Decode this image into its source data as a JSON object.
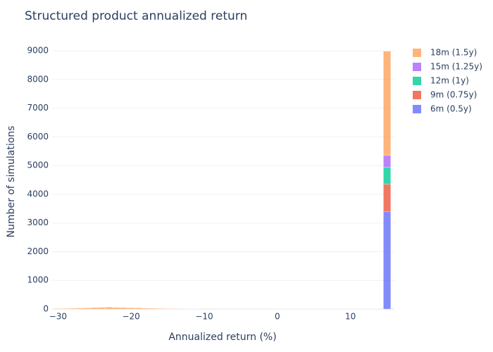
{
  "chart_data": {
    "type": "histogram",
    "title": "Structured product annualized return",
    "x_label": "Annualized return (%)",
    "y_label": "Number of simulations",
    "bins": [
      -30.5,
      -29.5,
      -28.5,
      -27.5,
      -26.5,
      -25.5,
      -24.5,
      -23.5,
      -22.5,
      -21.5,
      -20.5,
      -19.5,
      -18.5,
      -17.5,
      -16.5,
      -15.5,
      -14.5,
      -13.5,
      -12.5,
      -11.5,
      -10.5,
      -9.5,
      -8.5,
      -7.5,
      -6.5,
      -5.5,
      -4.5,
      -3.5,
      -2.5,
      -1.5,
      -0.5,
      0.5,
      1.5,
      2.5,
      3.5,
      4.5,
      5.5,
      6.5,
      7.5,
      8.5,
      9.5,
      10.5,
      11.5,
      12.5,
      13.5,
      14.5,
      15.5
    ],
    "series": [
      {
        "name": "6m (0.5y)",
        "color": "#636efa",
        "values": [
          0,
          0,
          0,
          0,
          0,
          0,
          0,
          0,
          0,
          0,
          0,
          0,
          0,
          0,
          0,
          0,
          0,
          0,
          0,
          0,
          0,
          0,
          0,
          0,
          0,
          0,
          0,
          0,
          0,
          0,
          3,
          3,
          3,
          3,
          3,
          3,
          3,
          3,
          3,
          3,
          3,
          3,
          3,
          3,
          3,
          3400
        ]
      },
      {
        "name": "9m (0.75y)",
        "color": "#EF553B",
        "values": [
          0,
          0,
          0,
          0,
          0,
          0,
          0,
          0,
          0,
          0,
          0,
          0,
          0,
          0,
          0,
          0,
          0,
          0,
          0,
          0,
          0,
          0,
          0,
          0,
          0,
          2,
          2,
          2,
          2,
          2,
          2,
          2,
          2,
          2,
          2,
          2,
          2,
          2,
          2,
          2,
          2,
          2,
          2,
          2,
          2,
          950
        ]
      },
      {
        "name": "12m (1y)",
        "color": "#00cc96",
        "values": [
          0,
          0,
          0,
          0,
          0,
          0,
          0,
          0,
          0,
          0,
          0,
          0,
          0,
          0,
          0,
          0,
          0,
          0,
          0,
          0,
          2,
          2,
          2,
          2,
          2,
          2,
          2,
          2,
          2,
          2,
          2,
          2,
          2,
          2,
          2,
          2,
          2,
          2,
          2,
          2,
          2,
          2,
          2,
          2,
          2,
          600
        ]
      },
      {
        "name": "15m (1.25y)",
        "color": "#ab63fa",
        "values": [
          0,
          0,
          0,
          0,
          0,
          0,
          0,
          0,
          0,
          0,
          0,
          0,
          0,
          0,
          0,
          2,
          2,
          2,
          2,
          2,
          2,
          2,
          2,
          2,
          2,
          2,
          2,
          2,
          2,
          2,
          2,
          2,
          2,
          2,
          2,
          2,
          2,
          2,
          2,
          2,
          2,
          2,
          2,
          2,
          2,
          400
        ]
      },
      {
        "name": "18m (1.5y)",
        "color": "#FFA15A",
        "values": [
          15,
          20,
          25,
          35,
          40,
          50,
          60,
          65,
          55,
          50,
          45,
          40,
          30,
          25,
          20,
          15,
          12,
          10,
          8,
          6,
          5,
          4,
          3,
          3,
          2,
          2,
          2,
          2,
          2,
          2,
          2,
          2,
          2,
          2,
          2,
          2,
          2,
          2,
          2,
          2,
          2,
          2,
          2,
          2,
          2,
          3630
        ]
      }
    ],
    "xlim": [
      -30.8,
      16
    ],
    "ylim": [
      0,
      9100
    ],
    "xticks": [
      {
        "value": -30,
        "label": "−30"
      },
      {
        "value": -20,
        "label": "−20"
      },
      {
        "value": -10,
        "label": "−10"
      },
      0,
      10
    ],
    "yticks": [
      0,
      1000,
      2000,
      3000,
      4000,
      5000,
      6000,
      7000,
      8000,
      9000
    ],
    "grid": true,
    "stacked": true,
    "legend": "right",
    "opacity": 0.8
  }
}
